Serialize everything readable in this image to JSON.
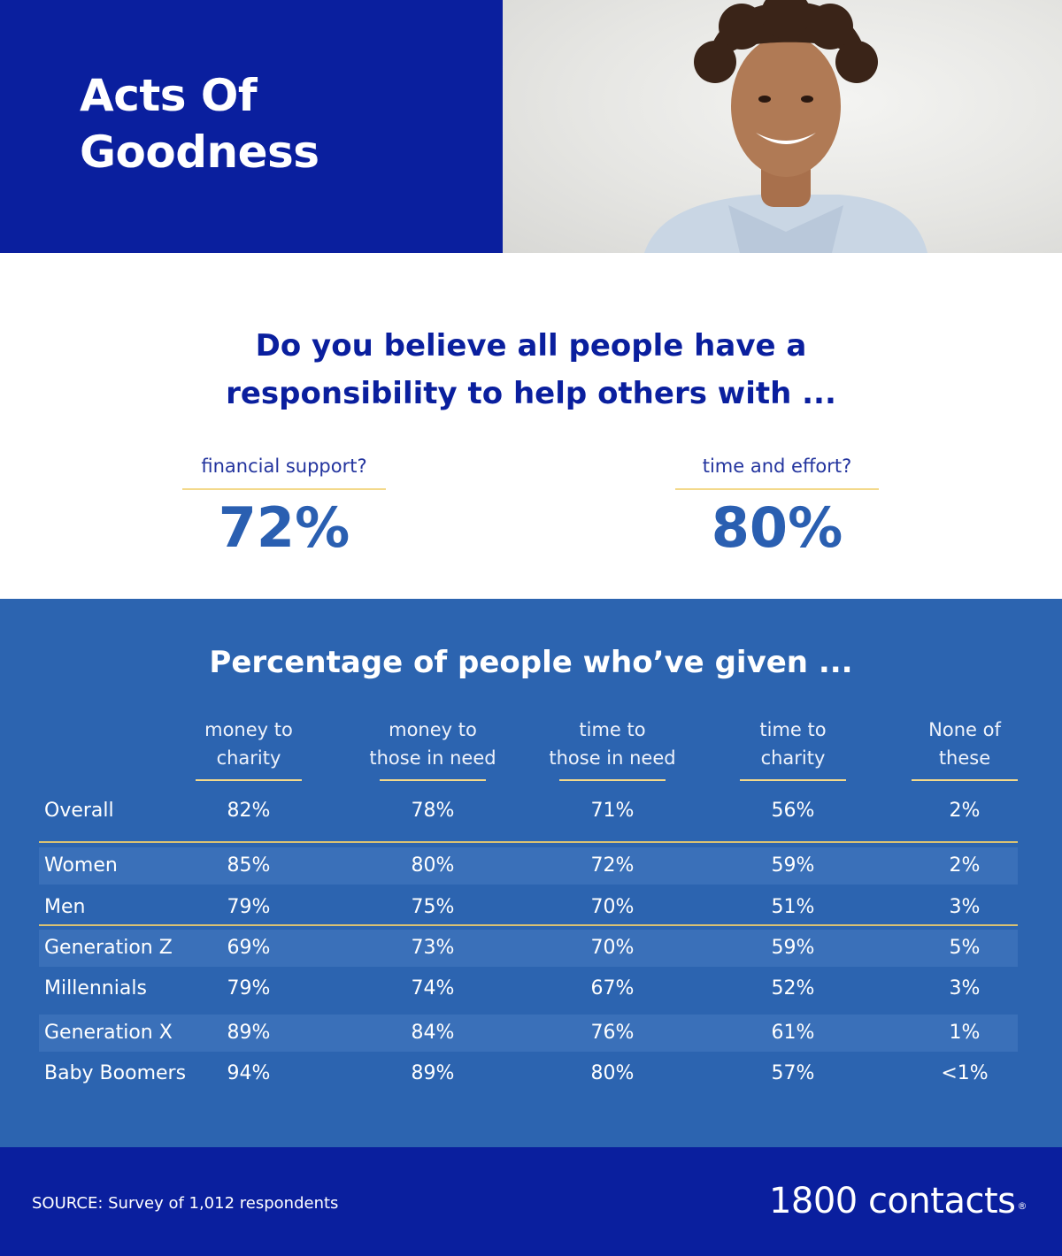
{
  "hero": {
    "title_line1": "Acts Of",
    "title_line2": "Goodness"
  },
  "question": {
    "line1": "Do you believe all people have a",
    "line2": "responsibility to help others with ...",
    "stats": [
      {
        "label": "financial support?",
        "value": "72%"
      },
      {
        "label": "time and effort?",
        "value": "80%"
      }
    ]
  },
  "chart_data": {
    "type": "table",
    "title": "Percentage of people who’ve given ...",
    "columns": [
      {
        "line1": "money to",
        "line2": "charity"
      },
      {
        "line1": "money to",
        "line2": "those in need"
      },
      {
        "line1": "time to",
        "line2": "those in need"
      },
      {
        "line1": "time to",
        "line2": "charity"
      },
      {
        "line1": "None of",
        "line2": "these"
      }
    ],
    "rows": [
      {
        "label": "Overall",
        "values": [
          "82%",
          "78%",
          "71%",
          "56%",
          "2%"
        ]
      },
      {
        "label": "Women",
        "values": [
          "85%",
          "80%",
          "72%",
          "59%",
          "2%"
        ]
      },
      {
        "label": "Men",
        "values": [
          "79%",
          "75%",
          "70%",
          "51%",
          "3%"
        ]
      },
      {
        "label": "Generation Z",
        "values": [
          "69%",
          "73%",
          "70%",
          "59%",
          "5%"
        ]
      },
      {
        "label": "Millennials",
        "values": [
          "79%",
          "74%",
          "67%",
          "52%",
          "3%"
        ]
      },
      {
        "label": "Generation X",
        "values": [
          "89%",
          "84%",
          "76%",
          "61%",
          "1%"
        ]
      },
      {
        "label": "Baby Boomers",
        "values": [
          "94%",
          "89%",
          "80%",
          "57%",
          "<1%"
        ]
      }
    ]
  },
  "footer": {
    "source": "SOURCE: Survey of 1,012 respondents",
    "logo": "1800 contacts",
    "logo_mark": "®"
  },
  "colors": {
    "navy": "#0a1f9e",
    "table_blue": "#2c64b0",
    "stat_blue": "#2a5fb1",
    "gold_rule": "#f3d98b"
  }
}
